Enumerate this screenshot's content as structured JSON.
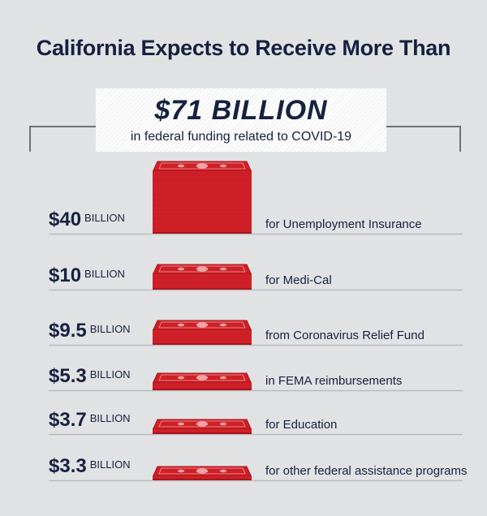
{
  "header": {
    "title": "California Expects to Receive More Than"
  },
  "callout": {
    "amount": "$71 BILLION",
    "subtitle": "in federal funding related to COVID-19"
  },
  "colors": {
    "background": "#e1e2e4",
    "navy": "#15213f",
    "bill_red": "#cf2027",
    "bill_dark": "#a8151c",
    "bill_light": "#f2a4a7"
  },
  "chart_data": {
    "type": "bar",
    "unit": "BILLION",
    "items": [
      {
        "value": 40,
        "value_label": "$40",
        "unit_label": "BILLION",
        "description": "for Unemployment Insurance"
      },
      {
        "value": 10,
        "value_label": "$10",
        "unit_label": "BILLION",
        "description": "for Medi-Cal"
      },
      {
        "value": 9.5,
        "value_label": "$9.5",
        "unit_label": "BILLION",
        "description": "from Coronavirus Relief Fund"
      },
      {
        "value": 5.3,
        "value_label": "$5.3",
        "unit_label": "BILLION",
        "description": "in FEMA reimbursements"
      },
      {
        "value": 3.7,
        "value_label": "$3.7",
        "unit_label": "BILLION",
        "description": "for Education"
      },
      {
        "value": 3.3,
        "value_label": "$3.3",
        "unit_label": "BILLION",
        "description": "for other federal assistance programs"
      }
    ]
  }
}
